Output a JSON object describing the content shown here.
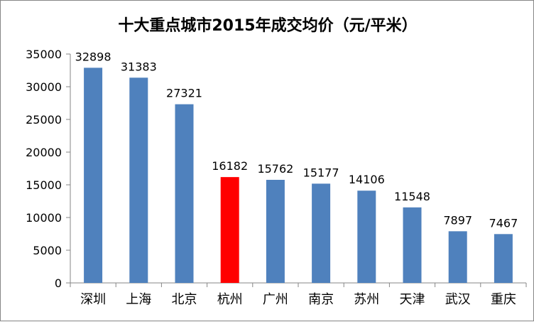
{
  "chart_data": {
    "type": "bar",
    "title": "十大重点城市2015年成交均价（元/平米）",
    "xlabel": "",
    "ylabel": "",
    "ylim": [
      0,
      35000
    ],
    "yticks": [
      0,
      5000,
      10000,
      15000,
      20000,
      25000,
      30000,
      35000
    ],
    "grid": false,
    "legend": "none",
    "categories": [
      "深圳",
      "上海",
      "北京",
      "杭州",
      "广州",
      "南京",
      "苏州",
      "天津",
      "武汉",
      "重庆"
    ],
    "values": [
      32898,
      31383,
      27321,
      16182,
      15762,
      15177,
      14106,
      11548,
      7897,
      7467
    ],
    "bar_color": "#4F81BD",
    "highlight_color": "#FF0000",
    "highlight_index": 3
  }
}
